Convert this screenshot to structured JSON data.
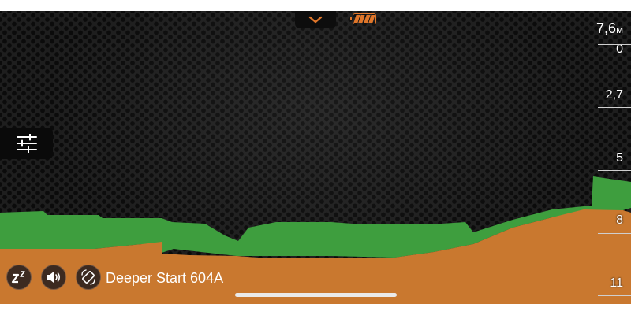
{
  "depth": {
    "current_value": "7,6",
    "current_unit": "м",
    "scale_labels": [
      "0",
      "2,7",
      "5",
      "8",
      "11"
    ]
  },
  "device": {
    "name": "Deeper Start 604A"
  },
  "controls": {
    "pull_down": "chevron-down-icon",
    "settings": "sliders-icon",
    "sleep": "sleep-icon",
    "sound": "speaker-icon",
    "mode": "rotate-phone-icon"
  },
  "battery": {
    "level": 1.0
  },
  "colors": {
    "accent": "#e0762a",
    "fish_layer": "#3e9e3e",
    "bottom": "#c9782f"
  }
}
